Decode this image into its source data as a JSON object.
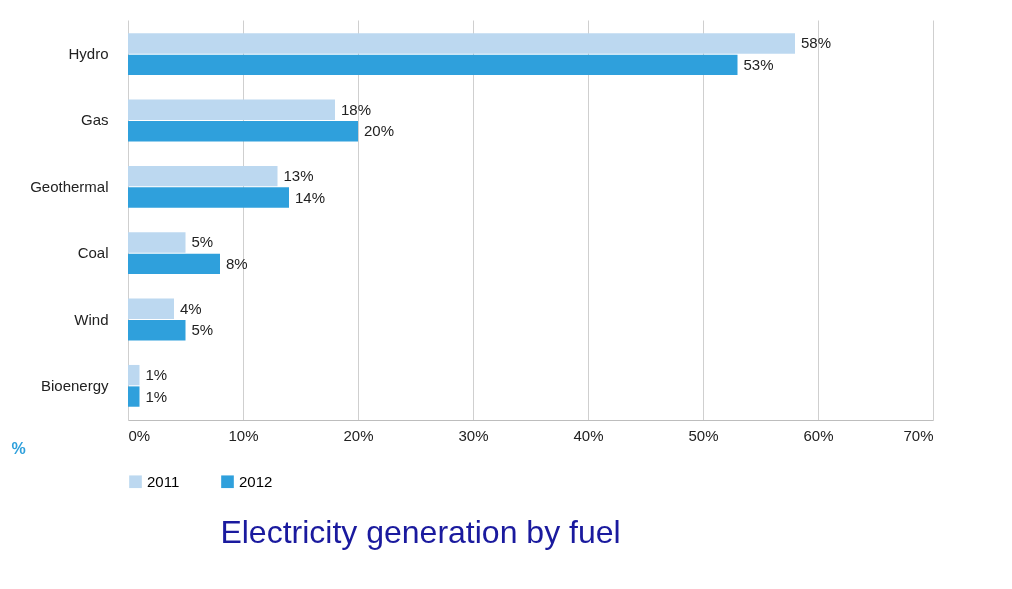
{
  "chart_data": {
    "type": "bar",
    "orientation": "horizontal",
    "title": "Electricity generation by fuel",
    "xlabel": "%",
    "categories": [
      "Hydro",
      "Gas",
      "Geothermal",
      "Coal",
      "Wind",
      "Bioenergy"
    ],
    "series": [
      {
        "name": "2011",
        "color": "#bcd8f0",
        "values": [
          58,
          18,
          13,
          5,
          4,
          1
        ],
        "value_labels": [
          "58%",
          "18%",
          "13%",
          "5%",
          "4%",
          "1%"
        ]
      },
      {
        "name": "2012",
        "color": "#2fa0dc",
        "values": [
          53,
          20,
          14,
          8,
          5,
          1
        ],
        "value_labels": [
          "53%",
          "20%",
          "14%",
          "8%",
          "5%",
          "1%"
        ]
      }
    ],
    "xlim": [
      0,
      70
    ],
    "xticks": [
      {
        "value": 0,
        "label": "0%"
      },
      {
        "value": 10,
        "label": "10%"
      },
      {
        "value": 20,
        "label": "20%"
      },
      {
        "value": 30,
        "label": "30%"
      },
      {
        "value": 40,
        "label": "40%"
      },
      {
        "value": 50,
        "label": "50%"
      },
      {
        "value": 60,
        "label": "60%"
      },
      {
        "value": 70,
        "label": "70%"
      }
    ],
    "grid": "x",
    "legend": "bottom"
  }
}
